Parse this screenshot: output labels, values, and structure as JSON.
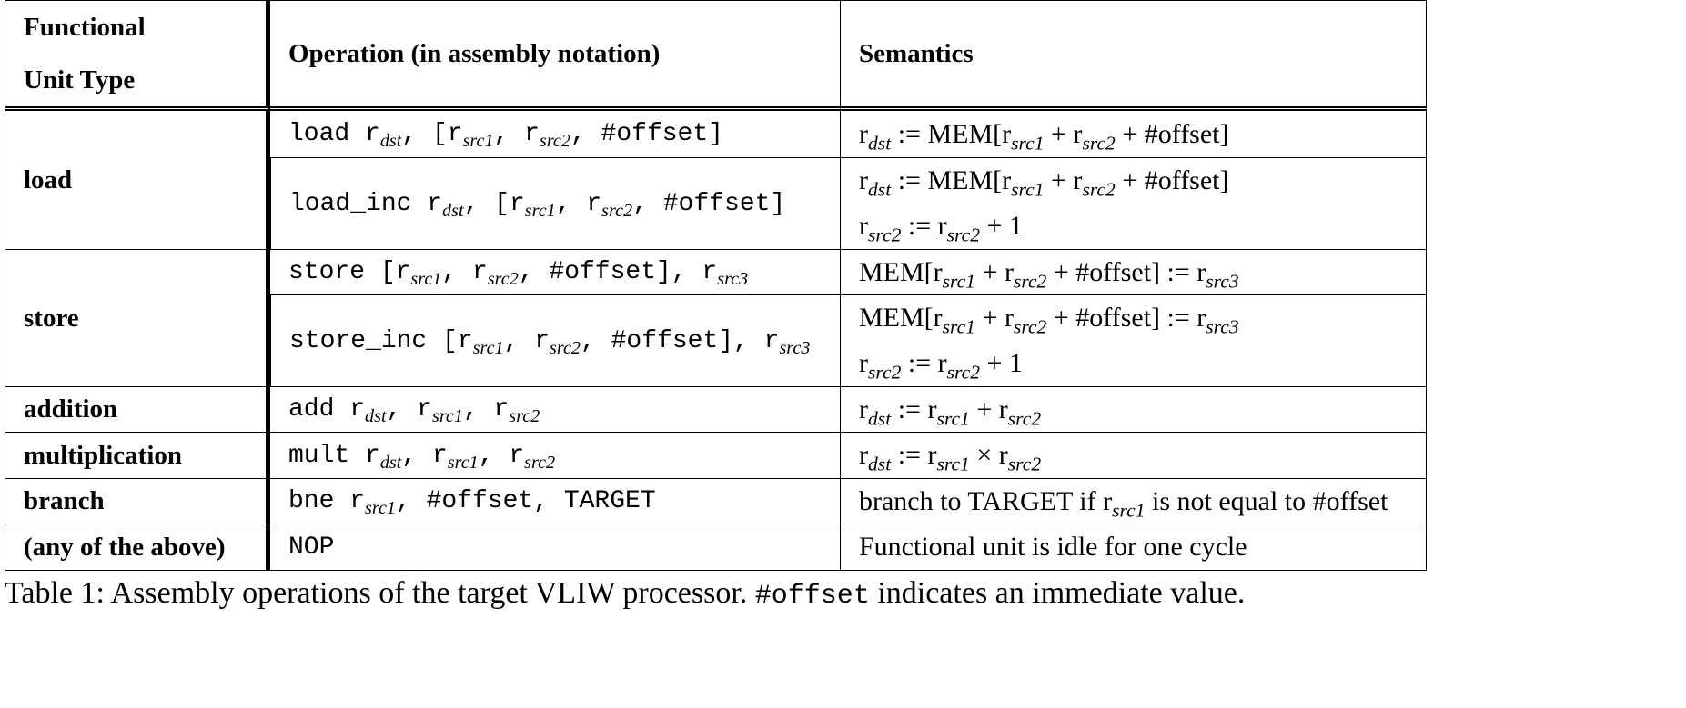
{
  "table": {
    "headers": {
      "unit_line1": "Functional",
      "unit_line2": "Unit Type",
      "operation": "Operation (in assembly notation)",
      "semantics": "Semantics"
    },
    "units": {
      "load": "load",
      "store": "store",
      "addition": "addition",
      "multiplication": "multiplication",
      "branch": "branch",
      "any": "(any of the above)"
    },
    "rows": [
      {
        "op": "load r<sub>dst</sub>, [r<sub>src1</sub>, r<sub>src2</sub>, #offset]",
        "sem": [
          "r<sub>dst</sub> := MEM[r<sub>src1</sub> + r<sub>src2</sub> + #offset]"
        ]
      },
      {
        "op": "load_inc r<sub>dst</sub>, [r<sub>src1</sub>, r<sub>src2</sub>, #offset]",
        "sem": [
          "r<sub>dst</sub> := MEM[r<sub>src1</sub> + r<sub>src2</sub> + #offset]",
          "r<sub>src2</sub> := r<sub>src2</sub> + 1"
        ]
      },
      {
        "op": "store [r<sub>src1</sub>, r<sub>src2</sub>, #offset], r<sub>src3</sub>",
        "sem": [
          "MEM[r<sub>src1</sub> + r<sub>src2</sub> + #offset] := r<sub>src3</sub>"
        ]
      },
      {
        "op": "store_inc [r<sub>src1</sub>, r<sub>src2</sub>, #offset], r<sub>src3</sub>",
        "sem": [
          "MEM[r<sub>src1</sub> + r<sub>src2</sub> + #offset] := r<sub>src3</sub>",
          "r<sub>src2</sub> := r<sub>src2</sub> + 1"
        ]
      },
      {
        "op": "add r<sub>dst</sub>, r<sub>src1</sub>, r<sub>src2</sub>",
        "sem": [
          "r<sub>dst</sub> := r<sub>src1</sub> + r<sub>src2</sub>"
        ]
      },
      {
        "op": "mult r<sub>dst</sub>, r<sub>src1</sub>, r<sub>src2</sub>",
        "sem": [
          "r<sub>dst</sub> := r<sub>src1</sub> × r<sub>src2</sub>"
        ]
      },
      {
        "op": "bne r<sub>src1</sub>, #offset, TARGET",
        "sem": [
          "branch to TARGET if r<sub>src1</sub> is not equal to #offset"
        ]
      },
      {
        "op": "NOP",
        "sem": [
          "Functional unit is idle for one cycle"
        ]
      }
    ]
  },
  "caption": {
    "prefix": "Table 1: Assembly operations of the target VLIW processor. ",
    "code": "#offset",
    "suffix": " indicates an immediate value."
  }
}
